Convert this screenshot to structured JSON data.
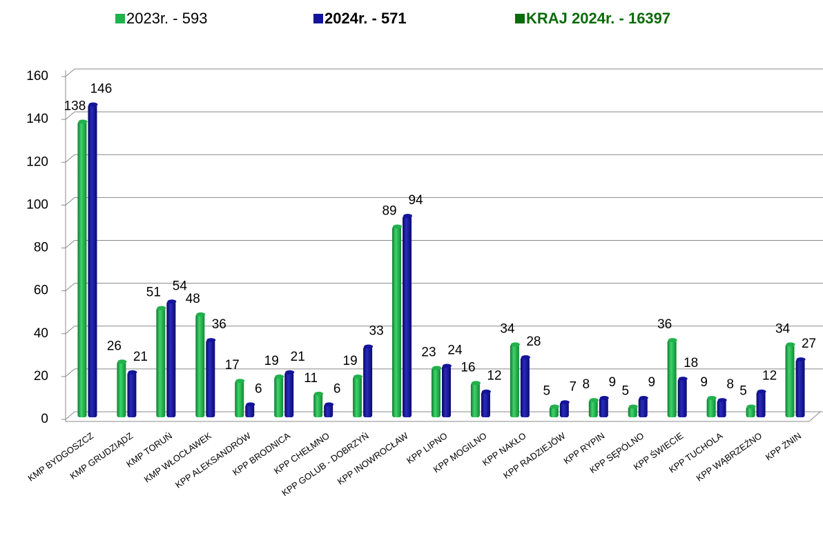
{
  "chart_data": {
    "type": "bar",
    "categories": [
      "KMP BYDGOSZCZ",
      "KMP GRUDZIĄDZ",
      "KMP TORUŃ",
      "KMP WŁOCŁAWEK",
      "KPP ALEKSANDRÓW",
      "KPP BRODNICA",
      "KPP CHEŁMNO",
      "KPP GOLUB - DOBRZYŃ",
      "KPP INOWROCŁAW",
      "KPP  LIPNO",
      "KPP  MOGILNO",
      "KPP  NAKŁO",
      "KPP  RADZIEJÓW",
      "KPP  RYPIN",
      "KPP  SĘPÓLNO",
      "KPP  ŚWIECIE",
      "KPP  TUCHOLA",
      "KPP  WĄBRZEŹNO",
      "KPP  ŻNIN"
    ],
    "series": [
      {
        "name": "2023r. -  593",
        "color": "#22b14c",
        "bold": false,
        "values": [
          138,
          26,
          51,
          48,
          17,
          19,
          11,
          19,
          89,
          23,
          16,
          34,
          5,
          8,
          5,
          36,
          9,
          5,
          34
        ]
      },
      {
        "name": "2024r. - 571",
        "color": "#14149a",
        "bold": true,
        "values": [
          146,
          21,
          54,
          36,
          6,
          21,
          6,
          33,
          94,
          24,
          12,
          28,
          7,
          9,
          9,
          18,
          8,
          12,
          27
        ]
      }
    ],
    "extra_legend": {
      "name": "KRAJ  2024r. - 16397",
      "color": "#0a6b0a",
      "bold": true
    },
    "ylim": [
      0,
      160
    ],
    "yticks": [
      0,
      20,
      40,
      60,
      80,
      100,
      120,
      140,
      160
    ],
    "grid": true
  }
}
